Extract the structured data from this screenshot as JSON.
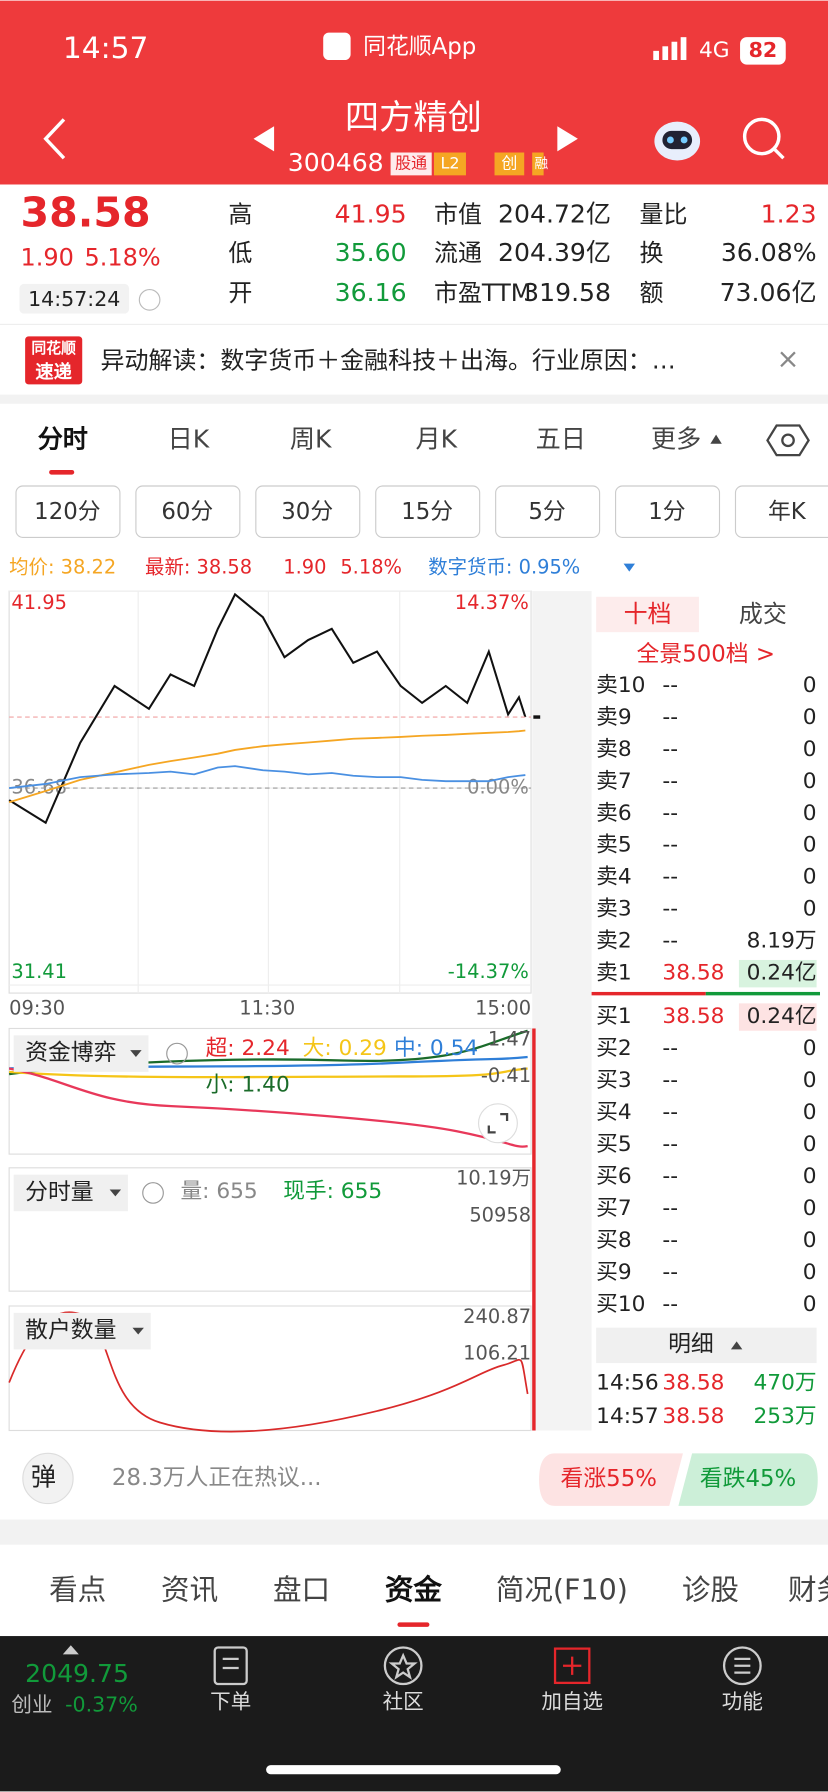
{
  "status": {
    "time": "14:57",
    "app": "同花顺App",
    "network": "4G",
    "battery": "82"
  },
  "header": {
    "name": "四方精创",
    "code": "300468",
    "tags": [
      "股通",
      "L2",
      "创",
      "融"
    ]
  },
  "quote": {
    "price": "38.58",
    "change": "1.90",
    "percent": "5.18%",
    "time": "14:57:24",
    "stats": [
      {
        "label": "高",
        "value": "41.95"
      },
      {
        "label": "低",
        "value": "35.60"
      },
      {
        "label": "开",
        "value": "36.16"
      },
      {
        "label": "市值",
        "value": "204.72亿"
      },
      {
        "label": "流通",
        "value": "204.39亿"
      },
      {
        "label": "市盈TTM",
        "value": "319.58"
      },
      {
        "label": "量比",
        "value": "1.23"
      },
      {
        "label": "换",
        "value": "36.08%"
      },
      {
        "label": "额",
        "value": "73.06亿"
      }
    ]
  },
  "news": {
    "badge": [
      "同花顺",
      "速递"
    ],
    "text": "异动解读：数字货币＋金融科技＋出海。行业原因：…",
    "close": "×"
  },
  "tabs": [
    "分时",
    "日K",
    "周K",
    "月K",
    "五日",
    "更多"
  ],
  "periods": [
    "120分",
    "60分",
    "30分",
    "15分",
    "5分",
    "1分",
    "年K"
  ],
  "info": {
    "avg": "均价: 38.22",
    "latest": "最新: 38.58",
    "change": "1.90",
    "percent": "5.18%",
    "concept": "数字货币: 0.95%"
  },
  "chart_data": {
    "type": "line",
    "x": [
      0,
      17,
      33,
      49,
      65,
      75,
      86,
      97,
      105,
      118,
      128,
      139,
      150,
      160,
      171,
      182,
      192,
      203,
      213,
      223,
      232,
      237,
      240
    ],
    "xlim": [
      0,
      240
    ],
    "xticks": [
      {
        "value": 0,
        "label": "09:30"
      },
      {
        "value": 120,
        "label": "11:30"
      },
      {
        "value": 240,
        "label": "15:00"
      }
    ],
    "ylim": [
      31.41,
      41.95
    ],
    "yticks": [
      31.41,
      36.68,
      41.95
    ],
    "y2lim": [
      -14.37,
      14.37
    ],
    "y2ticks": [
      {
        "value": -14.37,
        "label": "-14.37%"
      },
      {
        "value": 0,
        "label": "0.00%"
      },
      {
        "value": 14.37,
        "label": "14.37%"
      }
    ],
    "series": [
      {
        "name": "最新",
        "color": "#111111",
        "values": [
          36.36,
          35.75,
          37.89,
          39.41,
          38.8,
          39.72,
          39.41,
          40.94,
          41.86,
          41.25,
          40.18,
          40.64,
          40.94,
          40.03,
          40.33,
          39.41,
          38.96,
          39.41,
          38.96,
          40.33,
          38.65,
          39.11,
          38.58
        ]
      },
      {
        "name": "均价",
        "color": "#f5a623",
        "values": [
          36.3,
          36.6,
          36.9,
          37.1,
          37.3,
          37.4,
          37.5,
          37.6,
          37.7,
          37.8,
          37.85,
          37.9,
          37.95,
          38.0,
          38.02,
          38.05,
          38.08,
          38.1,
          38.13,
          38.16,
          38.18,
          38.2,
          38.22
        ]
      },
      {
        "name": "数字货币",
        "color": "#4a90e2",
        "axis": "y2",
        "values": [
          0.0,
          0.3,
          0.8,
          1.0,
          1.1,
          1.2,
          1.0,
          1.5,
          1.6,
          1.3,
          1.2,
          1.0,
          1.1,
          0.9,
          0.8,
          0.8,
          0.6,
          0.5,
          0.5,
          0.5,
          0.8,
          0.9,
          0.95
        ]
      }
    ]
  },
  "panels": [
    {
      "title": "资金博弈",
      "labels": [
        "超: 2.24",
        "大: 0.29",
        "中: 0.54",
        "小: 1.40"
      ],
      "right": [
        "1.47",
        "-0.41"
      ]
    },
    {
      "title": "分时量",
      "labels": [
        "量: 655",
        "现手: 655"
      ],
      "right": [
        "10.19万",
        "50958"
      ]
    },
    {
      "title": "散户数量",
      "labels": [],
      "right": [
        "240.87",
        "106.21"
      ]
    }
  ],
  "order_book": {
    "tabs": [
      "十档",
      "成交"
    ],
    "panorama": "全景500档 >",
    "sell": [
      {
        "label": "卖10",
        "price": "--",
        "volume": "0"
      },
      {
        "label": "卖9",
        "price": "--",
        "volume": "0"
      },
      {
        "label": "卖8",
        "price": "--",
        "volume": "0"
      },
      {
        "label": "卖7",
        "price": "--",
        "volume": "0"
      },
      {
        "label": "卖6",
        "price": "--",
        "volume": "0"
      },
      {
        "label": "卖5",
        "price": "--",
        "volume": "0"
      },
      {
        "label": "卖4",
        "price": "--",
        "volume": "0"
      },
      {
        "label": "卖3",
        "price": "--",
        "volume": "0"
      },
      {
        "label": "卖2",
        "price": "--",
        "volume": "8.19万"
      },
      {
        "label": "卖1",
        "price": "38.58",
        "volume": "0.24亿"
      }
    ],
    "buy": [
      {
        "label": "买1",
        "price": "38.58",
        "volume": "0.24亿"
      },
      {
        "label": "买2",
        "price": "--",
        "volume": "0"
      },
      {
        "label": "买3",
        "price": "--",
        "volume": "0"
      },
      {
        "label": "买4",
        "price": "--",
        "volume": "0"
      },
      {
        "label": "买5",
        "price": "--",
        "volume": "0"
      },
      {
        "label": "买6",
        "price": "--",
        "volume": "0"
      },
      {
        "label": "买7",
        "price": "--",
        "volume": "0"
      },
      {
        "label": "买8",
        "price": "--",
        "volume": "0"
      },
      {
        "label": "买9",
        "price": "--",
        "volume": "0"
      },
      {
        "label": "买10",
        "price": "--",
        "volume": "0"
      }
    ],
    "detail_title": "明细",
    "detail": [
      {
        "time": "14:56",
        "price": "38.58",
        "volume": "470万"
      },
      {
        "time": "14:57",
        "price": "38.58",
        "volume": "253万"
      }
    ]
  },
  "discussion": {
    "button": "弹",
    "text": "28.3万人正在热议...",
    "up": "看涨55%",
    "down": "看跌45%"
  },
  "bottom_tabs": [
    "看点",
    "资讯",
    "盘口",
    "资金",
    "简况(F10)",
    "诊股",
    "财务"
  ],
  "nav": {
    "index_value": "2049.75",
    "index_name": "创业",
    "index_change": "-0.37%",
    "items": [
      "下单",
      "社区",
      "加自选",
      "功能"
    ]
  }
}
